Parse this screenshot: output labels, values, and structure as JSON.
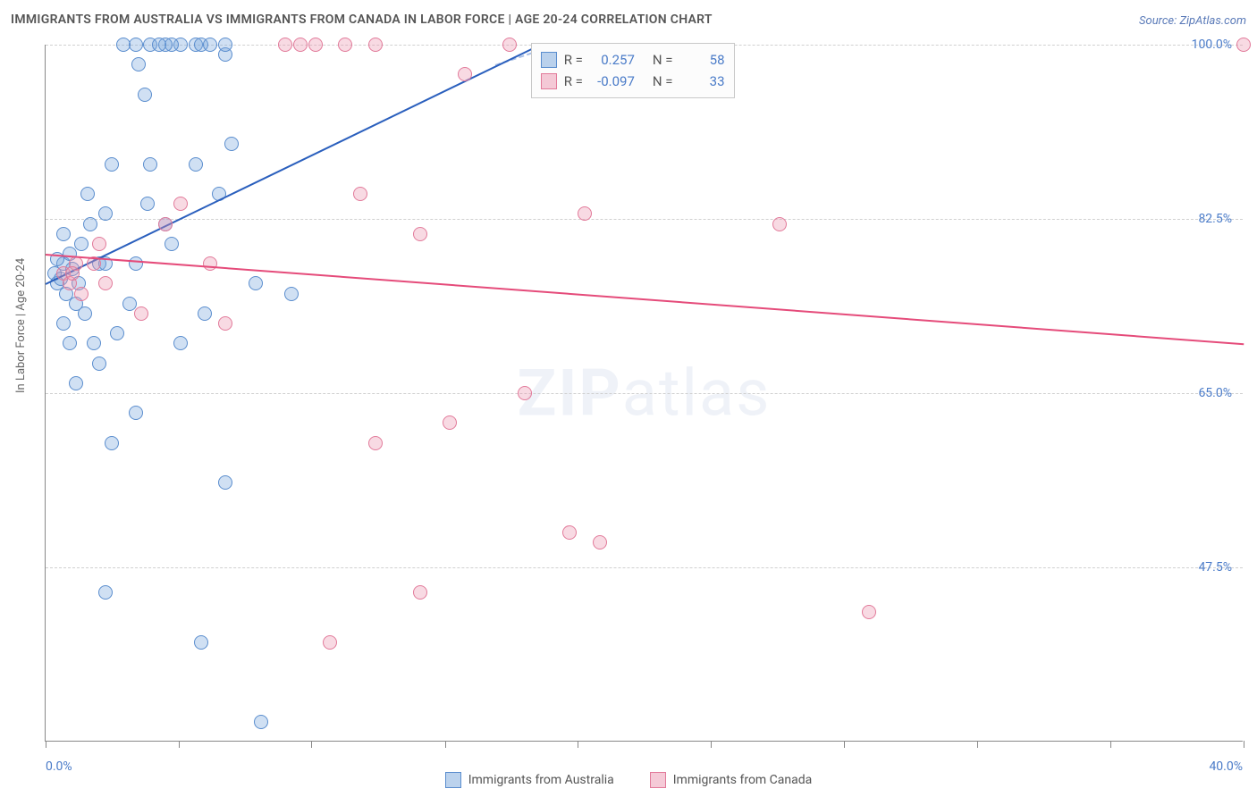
{
  "title": "IMMIGRANTS FROM AUSTRALIA VS IMMIGRANTS FROM CANADA IN LABOR FORCE | AGE 20-24 CORRELATION CHART",
  "source_prefix": "Source: ",
  "source_name": "ZipAtlas.com",
  "ylabel": "In Labor Force | Age 20-24",
  "watermark_bold": "ZIP",
  "watermark_light": "atlas",
  "chart": {
    "type": "scatter",
    "xlim": [
      0.0,
      40.0
    ],
    "ylim": [
      30.0,
      100.0
    ],
    "x_ticks": [
      0.0,
      40.0
    ],
    "y_ticks": [
      47.5,
      65.0,
      82.5,
      100.0
    ],
    "y_tick_labels": [
      "47.5%",
      "65.0%",
      "82.5%",
      "100.0%"
    ],
    "x_tick_labels": [
      "0.0%",
      "40.0%"
    ],
    "v_gridlines": [
      0,
      4.44,
      8.88,
      13.33,
      17.77,
      22.22,
      26.66,
      31.11,
      35.55,
      40.0
    ],
    "background_color": "#ffffff",
    "grid_color": "#d0d0d0",
    "marker_radius": 8,
    "series": [
      {
        "name": "Immigrants from Australia",
        "color_fill": "rgba(120,165,220,0.35)",
        "color_stroke": "#5a8dce",
        "trend_color": "#2a5fbd",
        "R": "0.257",
        "N": "58",
        "points": [
          [
            0.3,
            77
          ],
          [
            0.4,
            76
          ],
          [
            0.6,
            78
          ],
          [
            0.7,
            75
          ],
          [
            0.8,
            79
          ],
          [
            0.5,
            76.5
          ],
          [
            0.9,
            77.5
          ],
          [
            1.0,
            74
          ],
          [
            1.2,
            80
          ],
          [
            1.3,
            73
          ],
          [
            0.6,
            72
          ],
          [
            0.4,
            78.5
          ],
          [
            1.1,
            76
          ],
          [
            1.5,
            82
          ],
          [
            1.6,
            70
          ],
          [
            1.8,
            68
          ],
          [
            2.0,
            83
          ],
          [
            2.2,
            60
          ],
          [
            2.0,
            45
          ],
          [
            2.4,
            71
          ],
          [
            2.8,
            74
          ],
          [
            3.0,
            100
          ],
          [
            3.1,
            98
          ],
          [
            3.3,
            95
          ],
          [
            3.5,
            88
          ],
          [
            3.0,
            78
          ],
          [
            3.4,
            84
          ],
          [
            4.0,
            82
          ],
          [
            4.2,
            80
          ],
          [
            4.5,
            70
          ],
          [
            4.5,
            100
          ],
          [
            5.0,
            100
          ],
          [
            5.2,
            100
          ],
          [
            5.5,
            100
          ],
          [
            6.0,
            99
          ],
          [
            5.2,
            40
          ],
          [
            5.3,
            73
          ],
          [
            6.0,
            100
          ],
          [
            6.2,
            90
          ],
          [
            6.0,
            56
          ],
          [
            7.0,
            76
          ],
          [
            8.2,
            75
          ],
          [
            7.2,
            32
          ],
          [
            3.5,
            100
          ],
          [
            4.2,
            100
          ],
          [
            1.8,
            78
          ],
          [
            1.4,
            85
          ],
          [
            0.8,
            70
          ],
          [
            1.0,
            66
          ],
          [
            0.6,
            81
          ],
          [
            2.2,
            88
          ],
          [
            2.0,
            78
          ],
          [
            2.6,
            100
          ],
          [
            3.0,
            63
          ],
          [
            5.0,
            88
          ],
          [
            5.8,
            85
          ],
          [
            4.0,
            100
          ],
          [
            3.8,
            100
          ]
        ],
        "trend": {
          "x1": 0,
          "y1": 76,
          "x2": 16.5,
          "y2": 100
        }
      },
      {
        "name": "Immigrants from Canada",
        "color_fill": "rgba(235,150,175,0.35)",
        "color_stroke": "#e27a9a",
        "trend_color": "#e54b7a",
        "R": "-0.097",
        "N": "33",
        "points": [
          [
            0.6,
            77
          ],
          [
            0.8,
            76
          ],
          [
            1.0,
            78
          ],
          [
            1.2,
            75
          ],
          [
            0.9,
            77
          ],
          [
            1.6,
            78
          ],
          [
            1.8,
            80
          ],
          [
            4.0,
            82
          ],
          [
            4.5,
            84
          ],
          [
            5.5,
            78
          ],
          [
            6.0,
            72
          ],
          [
            8.0,
            100
          ],
          [
            8.5,
            100
          ],
          [
            9.0,
            100
          ],
          [
            10.5,
            85
          ],
          [
            10.0,
            100
          ],
          [
            11.0,
            100
          ],
          [
            12.5,
            81
          ],
          [
            14.0,
            97
          ],
          [
            15.5,
            100
          ],
          [
            18.0,
            83
          ],
          [
            17.5,
            51
          ],
          [
            18.5,
            50
          ],
          [
            11.0,
            60
          ],
          [
            12.5,
            45
          ],
          [
            9.5,
            40
          ],
          [
            16.0,
            65
          ],
          [
            13.5,
            62
          ],
          [
            24.5,
            82
          ],
          [
            27.5,
            43
          ],
          [
            40.0,
            100
          ],
          [
            3.2,
            73
          ],
          [
            2.0,
            76
          ]
        ],
        "trend": {
          "x1": 0,
          "y1": 79,
          "x2": 40,
          "y2": 70
        }
      }
    ]
  },
  "legend_stats": {
    "r_label": "R =",
    "n_label": "N ="
  },
  "bottom_legend": [
    {
      "label": "Immigrants from Australia",
      "class": "swatch-blue"
    },
    {
      "label": "Immigrants from Canada",
      "class": "swatch-pink"
    }
  ]
}
